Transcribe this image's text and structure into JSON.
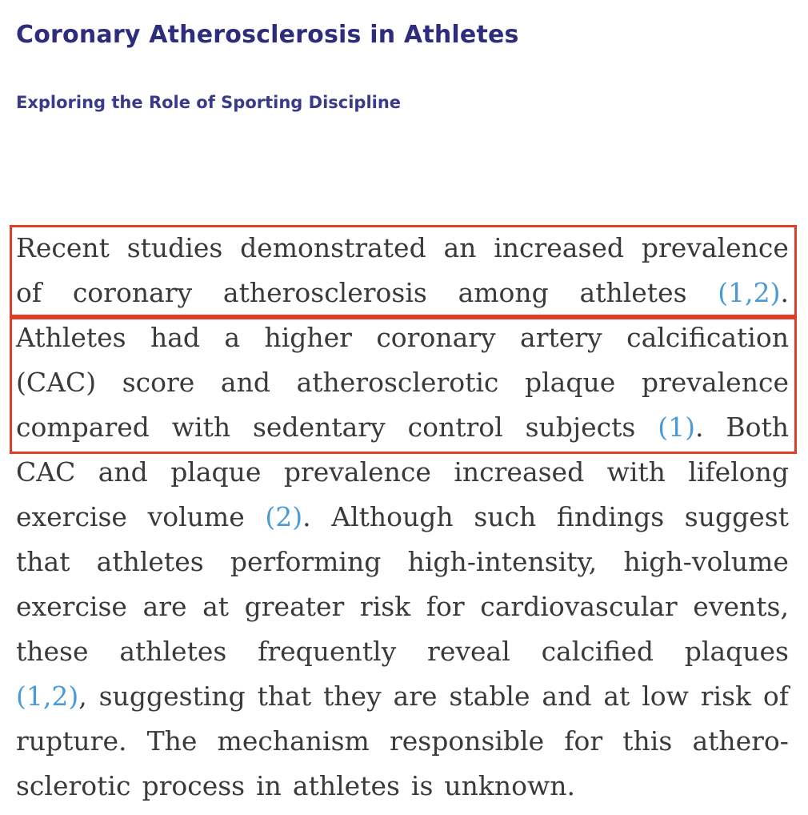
{
  "article": {
    "title": "Coronary Atherosclerosis in Athletes",
    "subtitle": "Exploring the Role of Sporting Discipline"
  },
  "paragraph": {
    "lines": [
      [
        {
          "t": "Recent"
        },
        {
          "t": "studies"
        },
        {
          "t": "demonstrated"
        },
        {
          "t": "an"
        },
        {
          "t": "increased"
        },
        {
          "t": "prevalence"
        }
      ],
      [
        {
          "t": "of"
        },
        {
          "t": "coronary"
        },
        {
          "t": "atherosclerosis"
        },
        {
          "t": "among"
        },
        {
          "t": "athletes"
        },
        {
          "t": "(1,2)",
          "c": true
        },
        {
          "t": "."
        }
      ],
      [
        {
          "t": "Athletes"
        },
        {
          "t": "had"
        },
        {
          "t": "a"
        },
        {
          "t": "higher"
        },
        {
          "t": "coronary"
        },
        {
          "t": "artery"
        },
        {
          "t": "calcification"
        }
      ],
      [
        {
          "t": "(CAC)"
        },
        {
          "t": "score"
        },
        {
          "t": "and"
        },
        {
          "t": "atherosclerotic"
        },
        {
          "t": "plaque"
        },
        {
          "t": "prevalence"
        }
      ],
      [
        {
          "t": "compared"
        },
        {
          "t": "with"
        },
        {
          "t": "sedentary"
        },
        {
          "t": "control"
        },
        {
          "t": "subjects"
        },
        {
          "t": "(1)",
          "c": true
        },
        {
          "t": "."
        },
        {
          "t": "Both"
        }
      ],
      [
        {
          "t": "CAC"
        },
        {
          "t": "and"
        },
        {
          "t": "plaque"
        },
        {
          "t": "prevalence"
        },
        {
          "t": "increased"
        },
        {
          "t": "with"
        },
        {
          "t": "lifelong"
        }
      ],
      [
        {
          "t": "exercise"
        },
        {
          "t": "volume"
        },
        {
          "t": "(2)",
          "c": true
        },
        {
          "t": "."
        },
        {
          "t": "Although"
        },
        {
          "t": "such"
        },
        {
          "t": "findings"
        },
        {
          "t": "suggest"
        }
      ],
      [
        {
          "t": "that"
        },
        {
          "t": "athletes"
        },
        {
          "t": "performing"
        },
        {
          "t": "high-intensity,"
        },
        {
          "t": "high-volume"
        }
      ],
      [
        {
          "t": "exercise"
        },
        {
          "t": "are"
        },
        {
          "t": "at"
        },
        {
          "t": "greater"
        },
        {
          "t": "risk"
        },
        {
          "t": "for"
        },
        {
          "t": "cardiovascular"
        },
        {
          "t": "events,"
        }
      ],
      [
        {
          "t": "these"
        },
        {
          "t": "athletes"
        },
        {
          "t": "frequently"
        },
        {
          "t": "reveal"
        },
        {
          "t": "calcified"
        },
        {
          "t": "plaques"
        }
      ],
      [
        {
          "t": "(1,2)",
          "c": true
        },
        {
          "t": ","
        },
        {
          "t": "suggesting"
        },
        {
          "t": "that"
        },
        {
          "t": "they"
        },
        {
          "t": "are"
        },
        {
          "t": "stable"
        },
        {
          "t": "and"
        },
        {
          "t": "at"
        },
        {
          "t": "low"
        },
        {
          "t": "risk"
        },
        {
          "t": "of"
        }
      ],
      [
        {
          "t": "rupture."
        },
        {
          "t": "The"
        },
        {
          "t": "mechanism"
        },
        {
          "t": "responsible"
        },
        {
          "t": "for"
        },
        {
          "t": "this"
        },
        {
          "t": "athero-"
        }
      ],
      [
        {
          "t": "sclerotic"
        },
        {
          "t": "process"
        },
        {
          "t": "in"
        },
        {
          "t": "athletes"
        },
        {
          "t": "is"
        },
        {
          "t": "unknown."
        }
      ]
    ]
  },
  "colors": {
    "title": "#2e2c7c",
    "subtitle": "#3a3a8c",
    "body_text": "#3a3a3a",
    "citation": "#4a9ad8",
    "highlight_border": "#e03c28"
  }
}
